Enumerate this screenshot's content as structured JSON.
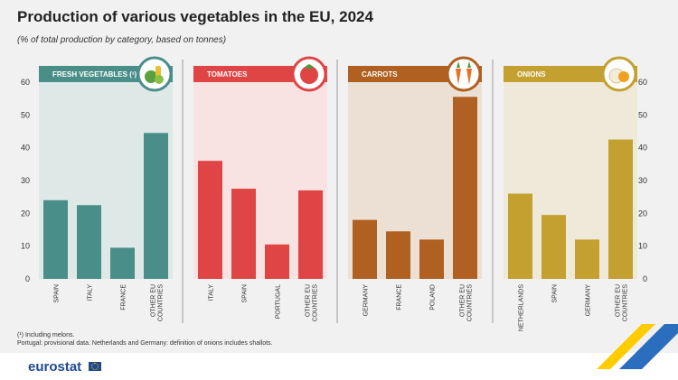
{
  "title": "Production of various vegetables in the EU, 2024",
  "subtitle": "(% of total production by category, based on tonnes)",
  "footnotes": [
    "(¹) Including melons.",
    "Portugal: provisional data. Netherlands and Germany: definition of onions includes shallots."
  ],
  "logo_text": "eurostat",
  "chart_data": {
    "type": "bar",
    "ylim": [
      0,
      60
    ],
    "yticks": [
      0,
      10,
      20,
      30,
      40,
      50,
      60
    ],
    "grid": false,
    "panels": [
      {
        "title": "FRESH VEGETABLES (¹)",
        "icon": "vegetables-icon",
        "color": "#4a8e89",
        "background": "#dde8e7",
        "header_color": "#4a8e89",
        "categories": [
          "SPAIN",
          "ITALY",
          "FRANCE",
          "OTHER EU COUNTRIES"
        ],
        "values": [
          24,
          22.5,
          9.5,
          44.5
        ]
      },
      {
        "title": "TOMATOES",
        "icon": "tomato-icon",
        "color": "#e04545",
        "background": "#f9e2e2",
        "header_color": "#e04545",
        "categories": [
          "ITALY",
          "SPAIN",
          "PORTUGAL",
          "OTHER EU COUNTRIES"
        ],
        "values": [
          36,
          27.5,
          10.5,
          27
        ]
      },
      {
        "title": "CARROTS",
        "icon": "carrot-icon",
        "color": "#b06020",
        "background": "#ecdfd4",
        "header_color": "#b06020",
        "categories": [
          "GERMANY",
          "FRANCE",
          "POLAND",
          "OTHER EU COUNTRIES"
        ],
        "values": [
          18,
          14.5,
          12,
          55.5
        ]
      },
      {
        "title": "ONIONS",
        "icon": "onion-icon",
        "color": "#c4a030",
        "background": "#efe9d9",
        "header_color": "#c4a030",
        "categories": [
          "NETHERLANDS",
          "SPAIN",
          "GERMANY",
          "OTHER EU COUNTRIES"
        ],
        "values": [
          26,
          19.5,
          12,
          42.5
        ]
      }
    ]
  }
}
